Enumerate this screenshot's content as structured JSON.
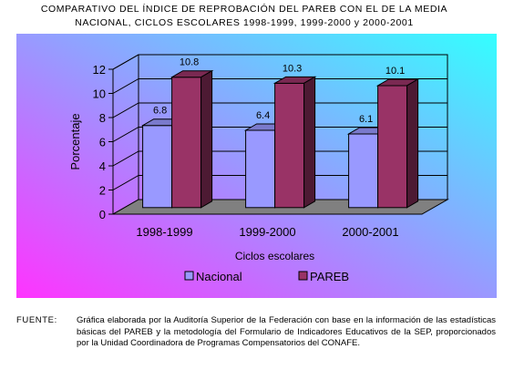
{
  "title_line1": "COMPARATIVO DEL ÍNDICE DE REPROBACIÓN DEL PAREB CON EL DE LA MEDIA",
  "title_line2": "NACIONAL, CICLOS ESCOLARES 1998-1999, 1999-2000 y 2000-2001",
  "source_label": "FUENTE:",
  "source_text": "Gráfica elaborada por la Auditoría Superior de la Federación con base en la información de las estadísticas básicas del PAREB y la metodología del Formulario de Indicadores Educativos de la SEP, proporcionados por la Unidad Coordinadora de Programas Compensatorios del CONAFE.",
  "chart_data": {
    "type": "bar",
    "categories": [
      "1998-1999",
      "1999-2000",
      "2000-2001"
    ],
    "series": [
      {
        "name": "Nacional",
        "values": [
          6.8,
          6.4,
          6.1
        ],
        "color": "#9999ff"
      },
      {
        "name": "PAREB",
        "values": [
          10.8,
          10.3,
          10.1
        ],
        "color": "#993366"
      }
    ],
    "xlabel": "Ciclos escolares",
    "ylabel": "Porcentaje",
    "ylim": [
      0,
      12
    ],
    "yticks": [
      0,
      2,
      4,
      6,
      8,
      10,
      12
    ],
    "grid": true,
    "legend": "bottom",
    "data_labels": true,
    "background_gradient": [
      "#ff33ff",
      "#33ffff"
    ]
  }
}
